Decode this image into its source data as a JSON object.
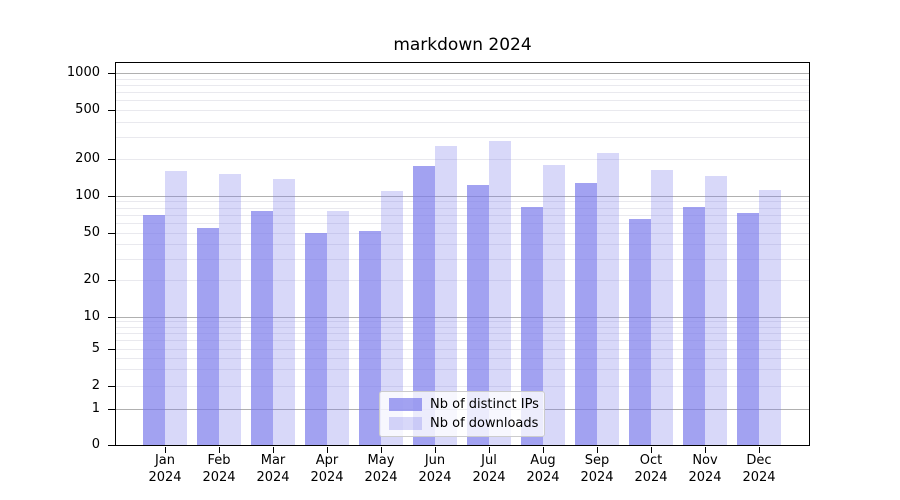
{
  "chart_data": {
    "type": "bar",
    "title": "markdown 2024",
    "categories": [
      "Jan 2024",
      "Feb 2024",
      "Mar 2024",
      "Apr 2024",
      "May 2024",
      "Jun 2024",
      "Jul 2024",
      "Aug 2024",
      "Sep 2024",
      "Oct 2024",
      "Nov 2024",
      "Dec 2024"
    ],
    "series": [
      {
        "name": "Nb of distinct IPs",
        "color_hex": "#a2a2f0",
        "fill": "rgba(120,120,235,0.69)",
        "values": [
          70,
          55,
          75,
          50,
          52,
          173,
          121,
          81,
          127,
          65,
          81,
          73
        ]
      },
      {
        "name": "Nb of downloads",
        "color_hex": "#d8d8f6",
        "fill": "rgba(120,120,235,0.29)",
        "values": [
          157,
          150,
          135,
          75,
          108,
          254,
          279,
          178,
          224,
          161,
          144,
          110
        ]
      }
    ],
    "yscale": "symlog",
    "yticks": [
      0,
      1,
      2,
      5,
      10,
      20,
      50,
      100,
      200,
      500,
      1000
    ],
    "ylim": [
      0,
      1250
    ],
    "xlabel": "",
    "ylabel": "",
    "grid": "horizontal: major lines at 1,10,100,1000; minor log lines 2-9 per decade",
    "legend": {
      "position": "lower center",
      "labels": [
        "Nb of distinct IPs",
        "Nb of downloads"
      ]
    },
    "colors": {
      "major_grid": "#b0b0b0",
      "minor_grid": "#e9e9ee",
      "spine": "#000000",
      "legend_border": "#cccccc"
    }
  }
}
